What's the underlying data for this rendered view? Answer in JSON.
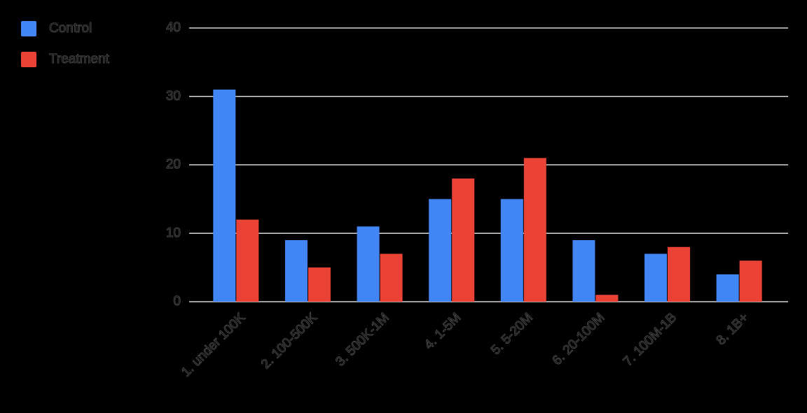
{
  "chart_data": {
    "type": "bar",
    "categories": [
      "1. under 100K",
      "2. 100-500K",
      "3. 500K-1M",
      "4. 1-5M",
      "5. 5-20M",
      "6. 20-100M",
      "7. 100M-1B",
      "8. 1B+"
    ],
    "series": [
      {
        "name": "Control",
        "color": "#4285f4",
        "values": [
          31,
          9,
          11,
          15,
          15,
          9,
          7,
          4
        ]
      },
      {
        "name": "Treatment",
        "color": "#ea4335",
        "values": [
          12,
          5,
          7,
          18,
          21,
          1,
          8,
          6
        ]
      }
    ],
    "ylim": [
      0,
      40
    ],
    "yticks": [
      0,
      10,
      20,
      30,
      40
    ],
    "grid": true,
    "legend": "top-left"
  }
}
